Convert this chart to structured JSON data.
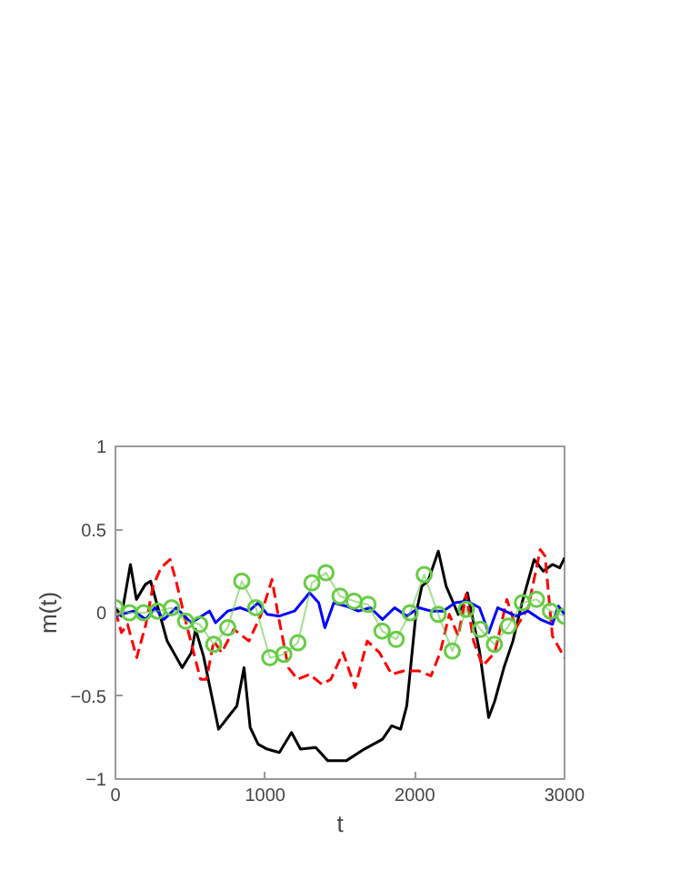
{
  "chart_data": {
    "type": "line",
    "xlabel": "t",
    "ylabel": "m(t)",
    "xlim": [
      0,
      3000
    ],
    "ylim": [
      -1,
      1
    ],
    "xticks": [
      0,
      1000,
      2000,
      3000
    ],
    "yticks": [
      -1,
      -0.5,
      0,
      0.5,
      1
    ],
    "grid": false,
    "series": [
      {
        "color": "#000000",
        "line_style": "solid",
        "marker": "none",
        "x": [
          0,
          40,
          100,
          140,
          200,
          235,
          284,
          345,
          446,
          507,
          535,
          588,
          689,
          750,
          811,
          859,
          900,
          953,
          1014,
          1095,
          1176,
          1236,
          1338,
          1419,
          1541,
          1662,
          1784,
          1845,
          1905,
          1946,
          2007,
          2047,
          2088,
          2157,
          2209,
          2290,
          2351,
          2432,
          2493,
          2534,
          2595,
          2655,
          2716,
          2797,
          2858,
          2919,
          2968,
          3000
        ],
        "values": [
          0.03,
          -0.02,
          0.29,
          0.08,
          0.17,
          0.19,
          0.03,
          -0.17,
          -0.33,
          -0.24,
          -0.1,
          -0.26,
          -0.7,
          -0.63,
          -0.56,
          -0.33,
          -0.69,
          -0.79,
          -0.82,
          -0.84,
          -0.72,
          -0.82,
          -0.81,
          -0.89,
          -0.89,
          -0.82,
          -0.76,
          -0.68,
          -0.7,
          -0.56,
          -0.01,
          0.16,
          0.19,
          0.37,
          0.16,
          -0.01,
          0.12,
          -0.23,
          -0.63,
          -0.53,
          -0.33,
          -0.17,
          0.06,
          0.32,
          0.25,
          0.29,
          0.27,
          0.33
        ]
      },
      {
        "color": "#ff0000",
        "line_style": "dashed",
        "marker": "none",
        "x": [
          0,
          40,
          81,
          142,
          203,
          251,
          304,
          365,
          405,
          466,
          568,
          608,
          657,
          709,
          791,
          892,
          973,
          1046,
          1086,
          1155,
          1216,
          1297,
          1378,
          1439,
          1520,
          1601,
          1682,
          1764,
          1845,
          1926,
          2027,
          2108,
          2169,
          2230,
          2290,
          2343,
          2392,
          2453,
          2534,
          2615,
          2676,
          2757,
          2838,
          2870,
          2919,
          3000
        ],
        "values": [
          0.01,
          -0.12,
          -0.07,
          -0.27,
          -0.07,
          0.16,
          0.27,
          0.32,
          0.19,
          -0.04,
          -0.4,
          -0.4,
          -0.17,
          -0.24,
          -0.1,
          -0.17,
          -0.01,
          0.2,
          -0.01,
          -0.33,
          -0.4,
          -0.37,
          -0.43,
          -0.4,
          -0.24,
          -0.45,
          -0.17,
          -0.24,
          -0.37,
          -0.35,
          -0.35,
          -0.38,
          -0.24,
          -0.01,
          -0.14,
          0.11,
          -0.17,
          -0.32,
          -0.24,
          0.08,
          -0.09,
          0.03,
          0.38,
          0.34,
          -0.14,
          -0.27
        ]
      },
      {
        "color": "#0000ff",
        "line_style": "solid",
        "marker": "none",
        "x": [
          0,
          122,
          203,
          264,
          324,
          405,
          507,
          628,
          669,
          750,
          832,
          892,
          953,
          1014,
          1095,
          1196,
          1297,
          1358,
          1399,
          1459,
          1541,
          1622,
          1703,
          1784,
          1865,
          1946,
          2027,
          2108,
          2189,
          2270,
          2351,
          2432,
          2493,
          2554,
          2676,
          2757,
          2838,
          2919,
          2959,
          3000
        ],
        "values": [
          -0.02,
          0.01,
          -0.04,
          0.03,
          -0.04,
          0.03,
          -0.06,
          0.01,
          -0.06,
          0.01,
          0.03,
          0.01,
          0.06,
          -0.01,
          -0.02,
          0.01,
          0.12,
          0.06,
          -0.09,
          0.06,
          0.04,
          0.01,
          0.03,
          -0.04,
          0.03,
          -0.02,
          0.03,
          0.01,
          0.01,
          0.06,
          0.07,
          0.03,
          -0.12,
          0.03,
          -0.02,
          0.01,
          -0.04,
          -0.07,
          0.04,
          -0.01
        ]
      },
      {
        "color": "#66cc44",
        "line_style": "solid",
        "marker": "circle",
        "x": [
          0,
          93.75,
          187.5,
          281.25,
          375,
          468.75,
          562.5,
          656.25,
          750,
          843.75,
          937.5,
          1031.25,
          1125,
          1218.75,
          1312.5,
          1406.25,
          1500,
          1593.75,
          1687.5,
          1781.25,
          1875,
          1968.75,
          2062.5,
          2156.25,
          2250,
          2343.75,
          2437.5,
          2531.25,
          2625,
          2718.75,
          2812.5,
          2906.25,
          3000
        ],
        "values": [
          0.03,
          0,
          0,
          0.01,
          0.03,
          -0.05,
          -0.07,
          -0.19,
          -0.09,
          0.19,
          0.03,
          -0.27,
          -0.25,
          -0.18,
          0.18,
          0.24,
          0.1,
          0.07,
          0.05,
          -0.11,
          -0.16,
          0,
          0.23,
          -0.01,
          -0.23,
          0.02,
          -0.1,
          -0.19,
          -0.08,
          0.06,
          0.08,
          0.01,
          -0.02
        ]
      }
    ]
  }
}
